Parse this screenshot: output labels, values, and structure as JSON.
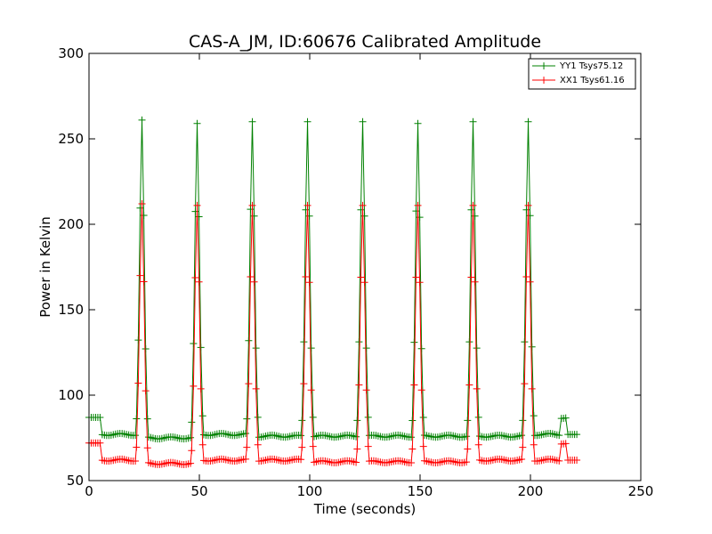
{
  "chart_data": {
    "type": "line",
    "title": "CAS-A_JM, ID:60676 Calibrated Amplitude",
    "xlabel": "Time (seconds)",
    "ylabel": "Power in Kelvin",
    "xlim": [
      0,
      250
    ],
    "ylim": [
      50,
      300
    ],
    "xticks": [
      "0",
      "50",
      "100",
      "150",
      "200",
      "250"
    ],
    "yticks": [
      "50",
      "100",
      "150",
      "200",
      "250",
      "300"
    ],
    "grid": false,
    "legend_position": "top-right",
    "marker": "+",
    "series": [
      {
        "name": "YY1 Tsys75.12",
        "color": "#008000",
        "baseline_segments": [
          {
            "x0": 0,
            "x1": 5,
            "y": 87
          },
          {
            "x0": 6,
            "x1": 21,
            "y": 77
          },
          {
            "x0": 27,
            "x1": 46,
            "y": 75
          },
          {
            "x0": 52,
            "x1": 71,
            "y": 77
          },
          {
            "x0": 77,
            "x1": 96,
            "y": 76
          },
          {
            "x0": 102,
            "x1": 121,
            "y": 76
          },
          {
            "x0": 127,
            "x1": 146,
            "y": 76
          },
          {
            "x0": 152,
            "x1": 171,
            "y": 76
          },
          {
            "x0": 177,
            "x1": 196,
            "y": 76
          },
          {
            "x0": 202,
            "x1": 213,
            "y": 77
          },
          {
            "x0": 214,
            "x1": 216,
            "y": 87
          },
          {
            "x0": 217,
            "x1": 221,
            "y": 77
          }
        ],
        "peaks": [
          {
            "x": 24,
            "y": 261
          },
          {
            "x": 49,
            "y": 259
          },
          {
            "x": 74,
            "y": 260
          },
          {
            "x": 99,
            "y": 260
          },
          {
            "x": 124,
            "y": 260
          },
          {
            "x": 149,
            "y": 259
          },
          {
            "x": 174,
            "y": 260
          },
          {
            "x": 199,
            "y": 260
          }
        ]
      },
      {
        "name": "XX1 Tsys61.16",
        "color": "#ff0000",
        "baseline_segments": [
          {
            "x0": 0,
            "x1": 5,
            "y": 72
          },
          {
            "x0": 6,
            "x1": 21,
            "y": 62
          },
          {
            "x0": 27,
            "x1": 46,
            "y": 60
          },
          {
            "x0": 52,
            "x1": 71,
            "y": 62
          },
          {
            "x0": 77,
            "x1": 96,
            "y": 62
          },
          {
            "x0": 102,
            "x1": 121,
            "y": 61
          },
          {
            "x0": 127,
            "x1": 146,
            "y": 61
          },
          {
            "x0": 152,
            "x1": 171,
            "y": 61
          },
          {
            "x0": 177,
            "x1": 196,
            "y": 62
          },
          {
            "x0": 202,
            "x1": 213,
            "y": 62
          },
          {
            "x0": 214,
            "x1": 216,
            "y": 72
          },
          {
            "x0": 217,
            "x1": 221,
            "y": 62
          }
        ],
        "peaks": [
          {
            "x": 24,
            "y": 212
          },
          {
            "x": 49,
            "y": 211
          },
          {
            "x": 74,
            "y": 211
          },
          {
            "x": 99,
            "y": 211
          },
          {
            "x": 124,
            "y": 211
          },
          {
            "x": 149,
            "y": 211
          },
          {
            "x": 174,
            "y": 211
          },
          {
            "x": 199,
            "y": 211
          }
        ]
      }
    ]
  }
}
